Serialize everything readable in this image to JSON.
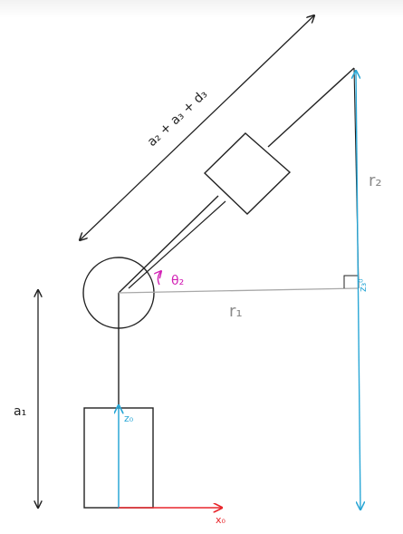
{
  "labels": {
    "link_length": "a₂ + a₃ + d₃",
    "a1": "a₁",
    "theta2": "θ₂",
    "r1": "r₁",
    "r2": "r₂",
    "z0": "z₀",
    "x0": "x₀",
    "z3_0": "z₃⁰"
  },
  "colors": {
    "ink": "#222222",
    "z_axis": "#2aa7d6",
    "x_axis": "#e8262b",
    "theta": "#d21fb4",
    "r1_line": "#a8a8a8",
    "faint_text": "#8a8a8a"
  }
}
